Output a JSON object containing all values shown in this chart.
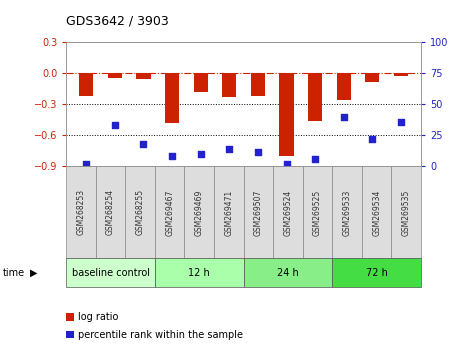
{
  "title": "GDS3642 / 3903",
  "samples": [
    "GSM268253",
    "GSM268254",
    "GSM268255",
    "GSM269467",
    "GSM269469",
    "GSM269471",
    "GSM269507",
    "GSM269524",
    "GSM269525",
    "GSM269533",
    "GSM269534",
    "GSM269535"
  ],
  "log_ratio": [
    -0.22,
    -0.04,
    -0.05,
    -0.48,
    -0.18,
    -0.23,
    -0.22,
    -0.8,
    -0.46,
    -0.26,
    -0.08,
    -0.02
  ],
  "percentile_rank": [
    2,
    33,
    18,
    8,
    10,
    14,
    12,
    2,
    6,
    40,
    22,
    36
  ],
  "bar_color": "#cc2200",
  "dot_color": "#2222cc",
  "ylim_left": [
    -0.9,
    0.3
  ],
  "ylim_right": [
    0,
    100
  ],
  "yticks_left": [
    -0.9,
    -0.6,
    -0.3,
    0.0,
    0.3
  ],
  "yticks_right": [
    0,
    25,
    50,
    75,
    100
  ],
  "hline_y": 0.0,
  "dotted_lines": [
    -0.3,
    -0.6
  ],
  "groups": [
    {
      "label": "baseline control",
      "start": 0,
      "end": 3,
      "color": "#ccffcc"
    },
    {
      "label": "12 h",
      "start": 3,
      "end": 6,
      "color": "#aaffaa"
    },
    {
      "label": "24 h",
      "start": 6,
      "end": 9,
      "color": "#88ee88"
    },
    {
      "label": "72 h",
      "start": 9,
      "end": 12,
      "color": "#44dd44"
    }
  ],
  "time_label": "time",
  "legend_log_ratio": "log ratio",
  "legend_percentile": "percentile rank within the sample",
  "bg_color": "#ffffff",
  "plot_bg": "#ffffff",
  "tick_label_color_left": "#cc2200",
  "tick_label_color_right": "#2222cc",
  "sample_box_color": "#dddddd",
  "sample_box_edge": "#888888"
}
